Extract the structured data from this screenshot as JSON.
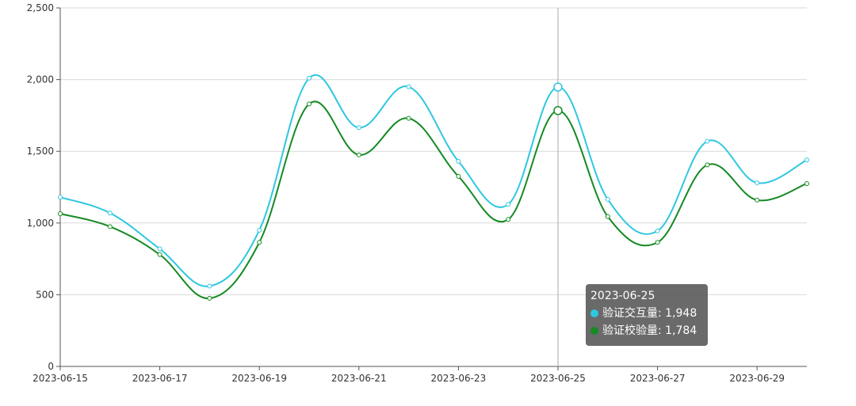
{
  "chart_data": {
    "type": "line",
    "x": [
      "2023-06-15",
      "2023-06-16",
      "2023-06-17",
      "2023-06-18",
      "2023-06-19",
      "2023-06-20",
      "2023-06-21",
      "2023-06-22",
      "2023-06-23",
      "2023-06-24",
      "2023-06-25",
      "2023-06-26",
      "2023-06-27",
      "2023-06-28",
      "2023-06-29",
      "2023-06-30"
    ],
    "xticks": [
      "2023-06-15",
      "2023-06-17",
      "2023-06-19",
      "2023-06-21",
      "2023-06-23",
      "2023-06-25",
      "2023-06-27",
      "2023-06-29"
    ],
    "yticks": [
      "0",
      "500",
      "1,000",
      "1,500",
      "2,000",
      "2,500"
    ],
    "ylim": [
      0,
      2500
    ],
    "grid": true,
    "series": [
      {
        "name": "验证交互量",
        "color": "#2ec7e0",
        "values": [
          1180,
          1070,
          820,
          560,
          950,
          2010,
          1665,
          1950,
          1430,
          1130,
          1948,
          1165,
          945,
          1570,
          1280,
          1440
        ]
      },
      {
        "name": "验证校验量",
        "color": "#148a22",
        "values": [
          1065,
          975,
          780,
          475,
          865,
          1830,
          1475,
          1730,
          1325,
          1025,
          1784,
          1045,
          865,
          1405,
          1160,
          1275
        ]
      }
    ],
    "tooltip": {
      "title": "2023-06-25",
      "rows": [
        {
          "label": "验证交互量",
          "value": "1,948"
        },
        {
          "label": "验证校验量",
          "value": "1,784"
        }
      ]
    }
  }
}
